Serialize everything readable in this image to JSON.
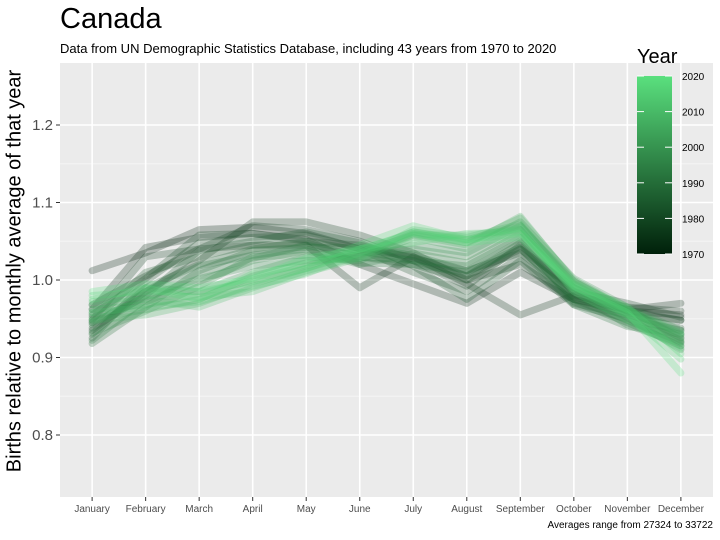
{
  "chart_data": {
    "type": "line",
    "title": "Canada",
    "subtitle": "Data from UN Demographic Statistics Database, including 43 years from 1970 to 2020",
    "caption": "Averages range from 27324 to 33722",
    "xlabel": "",
    "ylabel": "Births relative to monthly average of that year",
    "categories": [
      "January",
      "February",
      "March",
      "April",
      "May",
      "June",
      "July",
      "August",
      "September",
      "October",
      "November",
      "December"
    ],
    "ylim": [
      0.72,
      1.28
    ],
    "yticks": [
      0.8,
      0.9,
      1.0,
      1.1,
      1.2
    ],
    "ytick_labels": [
      "0.8",
      "0.9",
      "1.0",
      "1.1",
      "1.2"
    ],
    "legend": {
      "title": "Year",
      "placement": "right",
      "ticks": [
        1970,
        1980,
        1990,
        2000,
        2010,
        2020
      ],
      "colors": [
        "#00200a",
        "#5ae07e"
      ]
    },
    "grid": true,
    "series": [
      {
        "year": 1970,
        "values": [
          1.012,
          1.035,
          1.065,
          1.068,
          1.06,
          1.04,
          1.03,
          1.005,
          1.04,
          0.99,
          0.96,
          0.955
        ]
      },
      {
        "year": 1972,
        "values": [
          0.962,
          1.042,
          1.055,
          1.06,
          1.052,
          1.02,
          0.995,
          0.97,
          1.01,
          0.975,
          0.962,
          0.97
        ]
      },
      {
        "year": 1974,
        "values": [
          0.968,
          1.005,
          1.04,
          1.045,
          1.045,
          0.99,
          1.03,
          0.995,
          0.955,
          0.98,
          0.965,
          0.96
        ]
      },
      {
        "year": 1976,
        "values": [
          0.935,
          0.985,
          1.025,
          1.075,
          1.075,
          1.058,
          1.035,
          1.0,
          1.02,
          0.975,
          0.958,
          0.948
        ]
      },
      {
        "year": 1978,
        "values": [
          0.948,
          1.03,
          1.04,
          1.07,
          1.065,
          1.05,
          1.025,
          0.992,
          1.045,
          0.985,
          0.97,
          0.952
        ]
      },
      {
        "year": 1980,
        "values": [
          0.955,
          1.002,
          1.058,
          1.06,
          1.05,
          1.045,
          1.028,
          1.012,
          1.035,
          0.982,
          0.96,
          0.948
        ]
      },
      {
        "year": 1982,
        "values": [
          0.925,
          0.998,
          1.048,
          1.055,
          1.058,
          1.04,
          1.01,
          0.985,
          1.03,
          0.97,
          0.955,
          0.938
        ]
      },
      {
        "year": 1984,
        "values": [
          0.938,
          0.98,
          1.038,
          1.05,
          1.062,
          1.048,
          1.018,
          0.975,
          1.025,
          0.968,
          0.95,
          0.935
        ]
      },
      {
        "year": 1986,
        "values": [
          0.945,
          1.01,
          1.03,
          1.045,
          1.048,
          1.03,
          1.02,
          1.0,
          1.04,
          0.978,
          0.962,
          0.925
        ]
      },
      {
        "year": 1988,
        "values": [
          0.93,
          0.99,
          1.02,
          1.04,
          1.05,
          1.038,
          1.025,
          1.005,
          1.048,
          0.975,
          0.948,
          0.92
        ]
      },
      {
        "year": 1990,
        "values": [
          0.918,
          0.965,
          1.012,
          1.038,
          1.042,
          1.042,
          1.032,
          1.012,
          1.05,
          0.972,
          0.945,
          0.915
        ]
      },
      {
        "year": 1992,
        "values": [
          0.942,
          0.985,
          1.018,
          1.032,
          1.04,
          1.022,
          1.02,
          1.01,
          1.042,
          0.968,
          0.94,
          0.93
        ]
      },
      {
        "year": 1994,
        "values": [
          0.922,
          0.975,
          1.008,
          1.028,
          1.045,
          1.03,
          1.025,
          1.018,
          1.055,
          0.98,
          0.952,
          0.91
        ]
      },
      {
        "year": 1996,
        "values": [
          0.952,
          0.972,
          0.998,
          1.025,
          1.038,
          1.02,
          1.035,
          1.022,
          1.06,
          0.99,
          0.955,
          0.922
        ]
      },
      {
        "year": 1998,
        "values": [
          0.932,
          0.96,
          0.992,
          1.03,
          1.032,
          1.035,
          1.04,
          1.03,
          1.065,
          0.985,
          0.942,
          0.918
        ]
      },
      {
        "year": 2000,
        "values": [
          0.945,
          0.978,
          1.002,
          1.018,
          1.025,
          1.028,
          1.045,
          1.035,
          1.07,
          0.998,
          0.96,
          0.928
        ]
      },
      {
        "year": 2002,
        "values": [
          0.958,
          0.99,
          0.985,
          1.01,
          1.03,
          1.025,
          1.055,
          1.04,
          1.075,
          1.002,
          0.965,
          0.935
        ]
      },
      {
        "year": 2004,
        "values": [
          0.95,
          0.962,
          0.975,
          1.005,
          1.022,
          1.032,
          1.06,
          1.048,
          1.08,
          1.0,
          0.962,
          0.93
        ]
      },
      {
        "year": 2006,
        "values": [
          0.962,
          0.968,
          0.982,
          1.0,
          1.018,
          1.038,
          1.062,
          1.052,
          1.07,
          0.995,
          0.958,
          0.925
        ]
      },
      {
        "year": 2008,
        "values": [
          0.948,
          0.955,
          0.97,
          0.995,
          1.015,
          1.035,
          1.058,
          1.045,
          1.082,
          0.998,
          0.962,
          0.92
        ]
      },
      {
        "year": 2010,
        "values": [
          0.968,
          0.975,
          0.965,
          0.99,
          1.012,
          1.03,
          1.065,
          1.055,
          1.072,
          0.992,
          0.955,
          0.915
        ]
      },
      {
        "year": 2012,
        "values": [
          0.972,
          0.98,
          0.978,
          0.985,
          1.01,
          1.028,
          1.058,
          1.058,
          1.065,
          0.99,
          0.962,
          0.932
        ]
      },
      {
        "year": 2014,
        "values": [
          0.958,
          0.965,
          0.972,
          0.992,
          1.008,
          1.035,
          1.062,
          1.05,
          1.068,
          0.985,
          0.948,
          0.912
        ]
      },
      {
        "year": 2016,
        "values": [
          0.98,
          0.985,
          0.985,
          0.998,
          1.015,
          1.04,
          1.048,
          1.06,
          1.062,
          0.988,
          0.955,
          0.898
        ]
      },
      {
        "year": 2018,
        "values": [
          0.975,
          0.99,
          0.975,
          1.008,
          1.02,
          1.045,
          1.07,
          1.052,
          1.06,
          0.995,
          0.965,
          0.905
        ]
      },
      {
        "year": 2020,
        "values": [
          0.985,
          0.995,
          0.99,
          1.002,
          1.028,
          1.04,
          1.06,
          1.048,
          1.055,
          0.992,
          0.958,
          0.88
        ]
      }
    ]
  }
}
